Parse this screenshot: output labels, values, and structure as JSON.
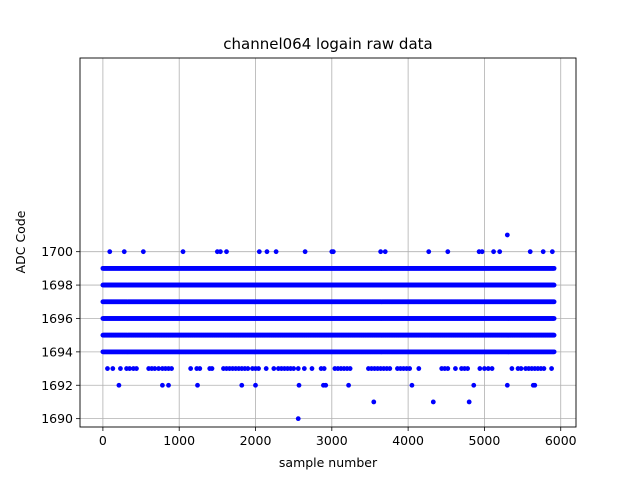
{
  "chart_data": {
    "type": "scatter",
    "title": "channel064 logain raw data",
    "xlabel": "sample number",
    "ylabel": "ADC Code",
    "xlim": [
      -300,
      6200
    ],
    "ylim": [
      1689.5,
      1711.6
    ],
    "xticks": [
      0,
      1000,
      2000,
      3000,
      4000,
      5000,
      6000
    ],
    "yticks": [
      1690,
      1692,
      1694,
      1696,
      1698,
      1700
    ],
    "xtick_labels": [
      "0",
      "1000",
      "2000",
      "3000",
      "4000",
      "5000",
      "6000"
    ],
    "ytick_labels": [
      "1690",
      "1692",
      "1694",
      "1696",
      "1698",
      "1700"
    ],
    "grid": true,
    "marker": "circle",
    "color": "#0000ff",
    "series": [
      {
        "points": [
          [
            2560,
            1690
          ],
          [
            3550,
            1691
          ],
          [
            4330,
            1691
          ],
          [
            4800,
            1691
          ],
          [
            210,
            1692
          ],
          [
            780,
            1692
          ],
          [
            860,
            1692
          ],
          [
            1240,
            1692
          ],
          [
            1820,
            1692
          ],
          [
            2000,
            1692
          ],
          [
            2570,
            1692
          ],
          [
            2890,
            1692
          ],
          [
            2920,
            1692
          ],
          [
            3220,
            1692
          ],
          [
            4050,
            1692
          ],
          [
            4860,
            1692
          ],
          [
            5300,
            1692
          ],
          [
            5640,
            1692
          ],
          [
            5660,
            1692
          ],
          [
            60,
            1693
          ],
          [
            130,
            1693
          ],
          [
            230,
            1693
          ],
          [
            310,
            1693
          ],
          [
            350,
            1693
          ],
          [
            400,
            1693
          ],
          [
            440,
            1693
          ],
          [
            600,
            1693
          ],
          [
            640,
            1693
          ],
          [
            680,
            1693
          ],
          [
            730,
            1693
          ],
          [
            780,
            1693
          ],
          [
            820,
            1693
          ],
          [
            860,
            1693
          ],
          [
            900,
            1693
          ],
          [
            1150,
            1693
          ],
          [
            1230,
            1693
          ],
          [
            1270,
            1693
          ],
          [
            1400,
            1693
          ],
          [
            1430,
            1693
          ],
          [
            1580,
            1693
          ],
          [
            1620,
            1693
          ],
          [
            1660,
            1693
          ],
          [
            1700,
            1693
          ],
          [
            1740,
            1693
          ],
          [
            1780,
            1693
          ],
          [
            1820,
            1693
          ],
          [
            1860,
            1693
          ],
          [
            1900,
            1693
          ],
          [
            1960,
            1693
          ],
          [
            2000,
            1693
          ],
          [
            2040,
            1693
          ],
          [
            2140,
            1693
          ],
          [
            2240,
            1693
          ],
          [
            2300,
            1693
          ],
          [
            2340,
            1693
          ],
          [
            2380,
            1693
          ],
          [
            2420,
            1693
          ],
          [
            2460,
            1693
          ],
          [
            2500,
            1693
          ],
          [
            2560,
            1693
          ],
          [
            2640,
            1693
          ],
          [
            2740,
            1693
          ],
          [
            2860,
            1693
          ],
          [
            2900,
            1693
          ],
          [
            3040,
            1693
          ],
          [
            3080,
            1693
          ],
          [
            3120,
            1693
          ],
          [
            3160,
            1693
          ],
          [
            3200,
            1693
          ],
          [
            3240,
            1693
          ],
          [
            3480,
            1693
          ],
          [
            3520,
            1693
          ],
          [
            3560,
            1693
          ],
          [
            3600,
            1693
          ],
          [
            3640,
            1693
          ],
          [
            3680,
            1693
          ],
          [
            3720,
            1693
          ],
          [
            3760,
            1693
          ],
          [
            3860,
            1693
          ],
          [
            3900,
            1693
          ],
          [
            3940,
            1693
          ],
          [
            3980,
            1693
          ],
          [
            4020,
            1693
          ],
          [
            4140,
            1693
          ],
          [
            4440,
            1693
          ],
          [
            4480,
            1693
          ],
          [
            4520,
            1693
          ],
          [
            4620,
            1693
          ],
          [
            4700,
            1693
          ],
          [
            4740,
            1693
          ],
          [
            4780,
            1693
          ],
          [
            4940,
            1693
          ],
          [
            5000,
            1693
          ],
          [
            5050,
            1693
          ],
          [
            5100,
            1693
          ],
          [
            5360,
            1693
          ],
          [
            5440,
            1693
          ],
          [
            5480,
            1693
          ],
          [
            5540,
            1693
          ],
          [
            5580,
            1693
          ],
          [
            5620,
            1693
          ],
          [
            5660,
            1693
          ],
          [
            5700,
            1693
          ],
          [
            5740,
            1693
          ],
          [
            5780,
            1693
          ],
          [
            5880,
            1693
          ],
          [
            90,
            1700
          ],
          [
            280,
            1700
          ],
          [
            530,
            1700
          ],
          [
            1050,
            1700
          ],
          [
            1500,
            1700
          ],
          [
            1540,
            1700
          ],
          [
            1620,
            1700
          ],
          [
            2050,
            1700
          ],
          [
            2150,
            1700
          ],
          [
            2270,
            1700
          ],
          [
            2650,
            1700
          ],
          [
            3000,
            1700
          ],
          [
            3020,
            1700
          ],
          [
            3640,
            1700
          ],
          [
            3700,
            1700
          ],
          [
            4270,
            1700
          ],
          [
            4520,
            1700
          ],
          [
            4930,
            1700
          ],
          [
            4970,
            1700
          ],
          [
            5120,
            1700
          ],
          [
            5200,
            1700
          ],
          [
            5600,
            1700
          ],
          [
            5770,
            1700
          ],
          [
            5890,
            1700
          ],
          [
            5300,
            1701
          ]
        ]
      }
    ],
    "dense_bands": [
      {
        "y": 1694,
        "x_range": [
          0,
          5920
        ]
      },
      {
        "y": 1695,
        "x_range": [
          0,
          5920
        ]
      },
      {
        "y": 1696,
        "x_range": [
          0,
          5920
        ]
      },
      {
        "y": 1697,
        "x_range": [
          0,
          5920
        ]
      },
      {
        "y": 1698,
        "x_range": [
          0,
          5920
        ]
      },
      {
        "y": 1699,
        "x_range": [
          0,
          5920
        ]
      }
    ]
  }
}
